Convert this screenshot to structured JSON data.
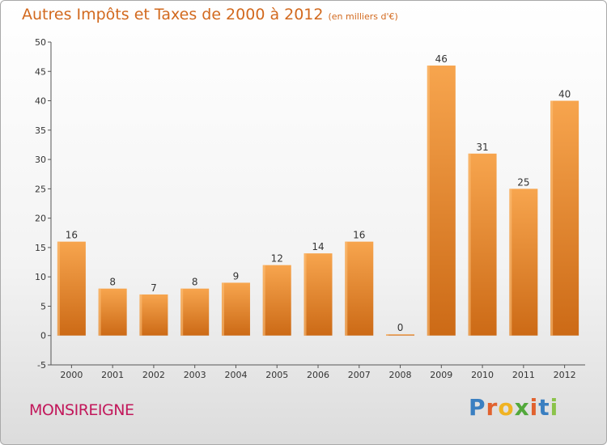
{
  "header": {
    "title": "Autres Impôts et Taxes de 2000 à 2012",
    "unit": "(en milliers d'€)"
  },
  "footer": {
    "commune": "MONSIREIGNE",
    "brand": "Proxiti"
  },
  "colors": {
    "bar_top": "#f7a54e",
    "bar_bottom": "#cc6a16",
    "title": "#d2691e",
    "commune": "#c2185b"
  },
  "chart_data": {
    "type": "bar",
    "title": "Autres Impôts et Taxes de 2000 à 2012",
    "subtitle": "(en milliers d'€)",
    "categories": [
      "2000",
      "2001",
      "2002",
      "2003",
      "2004",
      "2005",
      "2006",
      "2007",
      "2008",
      "2009",
      "2010",
      "2011",
      "2012"
    ],
    "values": [
      16,
      8,
      7,
      8,
      9,
      12,
      14,
      16,
      0,
      46,
      31,
      25,
      40
    ],
    "ylim": [
      -5,
      50
    ],
    "yticks": [
      -5,
      0,
      5,
      10,
      15,
      20,
      25,
      30,
      35,
      40,
      45,
      50
    ],
    "grid": false,
    "data_labels": true
  }
}
